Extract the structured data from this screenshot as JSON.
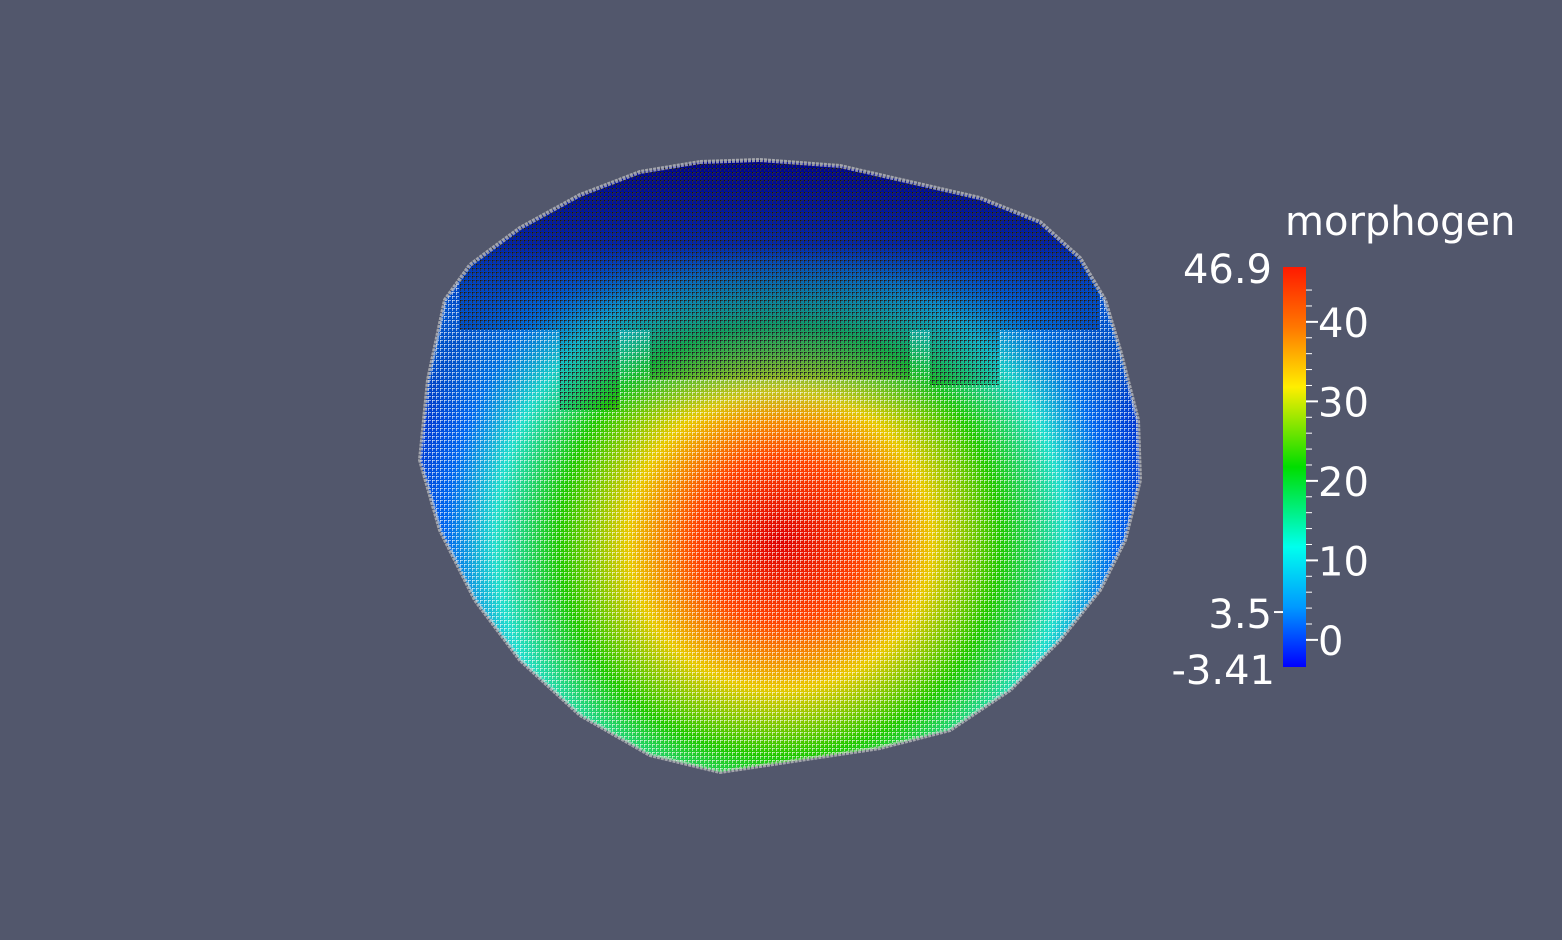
{
  "scalar_bar": {
    "title": "morphogen",
    "range_max_label": "46.9",
    "range_min_label": "-3.41",
    "annotation_label": "3.5",
    "tick_labels": [
      "40",
      "30",
      "20",
      "10",
      "0"
    ],
    "range": [
      -3.41,
      46.9
    ],
    "annotation_value": 3.5,
    "ticks": [
      40,
      30,
      20,
      10,
      0
    ],
    "colormap": "rainbow",
    "colors": {
      "max": "#ff2200",
      "high": "#ff9900",
      "mid_high": "#ffff00",
      "mid": "#00dd00",
      "mid_low": "#00ffff",
      "low": "#0088ff",
      "min": "#0000ff"
    }
  },
  "scene": {
    "background_color": "#52576c"
  }
}
